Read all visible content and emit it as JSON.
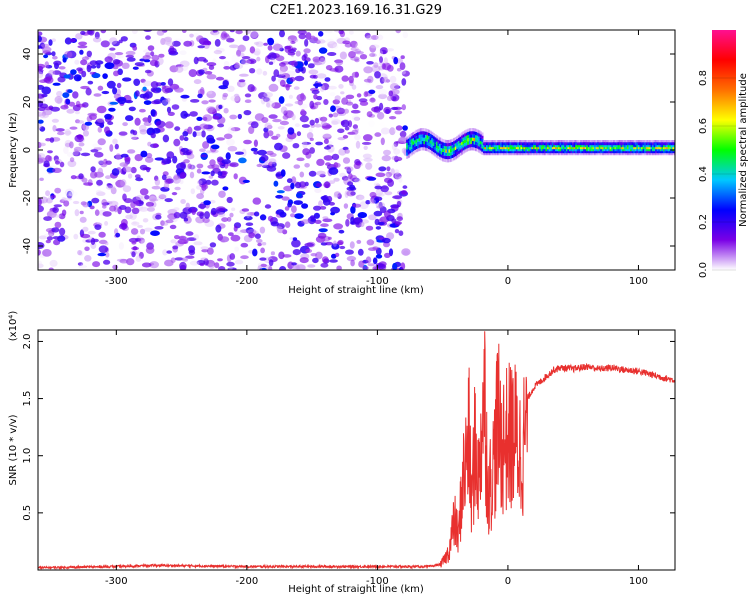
{
  "figure": {
    "title": "C2E1.2023.169.16.31.G29"
  },
  "chart_data": [
    {
      "type": "heatmap",
      "title": "C2E1.2023.169.16.31.G29",
      "xlabel": "Height of straight line (km)",
      "ylabel": "Frequency (Hz)",
      "xlim": [
        -360,
        128
      ],
      "ylim": [
        -50,
        50
      ],
      "xticks": [
        -300,
        -200,
        -100,
        0,
        100
      ],
      "xtick_labels": [
        "-300",
        "-200",
        "-100",
        "0",
        "100"
      ],
      "yticks": [
        -40,
        -20,
        0,
        20,
        40
      ],
      "ytick_labels": [
        "-40",
        "-20",
        "0",
        "20",
        "40"
      ],
      "colorbar": {
        "label": "Normalized spectral amplitude",
        "range": [
          0.0,
          1.0
        ],
        "ticks": [
          0.0,
          0.2,
          0.4,
          0.6,
          0.8
        ],
        "tick_labels": [
          "0.0",
          "0.2",
          "0.4",
          "0.6",
          "0.8"
        ],
        "colormap": "rainbow",
        "colors": [
          "#ffffff",
          "#7a00e6",
          "#0000ff",
          "#00c8ff",
          "#00ff00",
          "#ffff00",
          "#ff7000",
          "#ff0000",
          "#ff1090"
        ]
      },
      "regions": [
        {
          "x": [
            -360,
            -78
          ],
          "frequency": [
            -50,
            50
          ],
          "typical_amplitude": 0.15,
          "description": "diffuse scattered low amplitude"
        },
        {
          "x": [
            -78,
            128
          ],
          "frequency": [
            -1,
            2
          ],
          "typical_amplitude": 0.6,
          "description": "narrow band near 0 Hz"
        }
      ],
      "grid": false
    },
    {
      "type": "line",
      "xlabel": "Height of straight line (km)",
      "ylabel": "SNR (10 * v/v)",
      "y_multiplier_label": "(x10⁴)",
      "xlim": [
        -360,
        128
      ],
      "ylim": [
        0.0,
        2.1
      ],
      "xticks": [
        -300,
        -200,
        -100,
        0,
        100
      ],
      "xtick_labels": [
        "-300",
        "-200",
        "-100",
        "0",
        "100"
      ],
      "yticks": [
        0.5,
        1.0,
        1.5,
        2.0
      ],
      "ytick_labels": [
        "0.5",
        "1.0",
        "1.5",
        "2.0"
      ],
      "line_color": "#e8302e",
      "series": [
        {
          "x": [
            -360,
            -300,
            -270,
            -200,
            -100,
            -60,
            -52,
            -48,
            -45,
            -42,
            -40,
            -38,
            -35,
            -32,
            -30,
            -28,
            -25,
            -22,
            -20,
            -18,
            -15,
            -12,
            -10,
            -8,
            -5,
            0,
            5,
            10,
            15,
            20,
            25,
            30,
            35,
            40,
            50,
            60,
            70,
            80,
            90,
            100,
            110,
            120,
            128
          ],
          "y": [
            0.02,
            0.03,
            0.04,
            0.03,
            0.03,
            0.03,
            0.05,
            0.12,
            0.2,
            0.45,
            0.5,
            0.3,
            0.9,
            1.1,
            1.4,
            0.7,
            1.3,
            0.9,
            1.6,
            1.8,
            0.8,
            1.0,
            1.2,
            1.55,
            1.3,
            1.35,
            1.4,
            1.2,
            1.5,
            1.6,
            1.65,
            1.7,
            1.75,
            1.77,
            1.76,
            1.78,
            1.76,
            1.77,
            1.75,
            1.74,
            1.71,
            1.68,
            1.66
          ]
        }
      ],
      "grid": false
    }
  ]
}
